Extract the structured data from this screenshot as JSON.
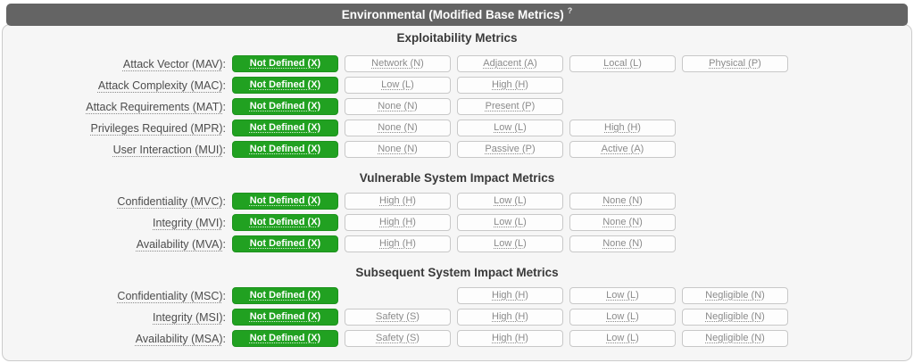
{
  "header": {
    "title": "Environmental (Modified Base Metrics)",
    "help": "?"
  },
  "label_suffix": ":",
  "colors": {
    "selected_green": "#21a121",
    "header_gray": "#646464",
    "panel_bg": "#f6f6f6"
  },
  "sections": [
    {
      "heading": "Exploitability Metrics",
      "rows": [
        {
          "label": "Attack Vector (MAV)",
          "options": [
            {
              "label": "Not Defined (X)",
              "selected": true
            },
            {
              "label": "Network (N)",
              "selected": false
            },
            {
              "label": "Adjacent (A)",
              "selected": false
            },
            {
              "label": "Local (L)",
              "selected": false
            },
            {
              "label": "Physical (P)",
              "selected": false
            }
          ]
        },
        {
          "label": "Attack Complexity (MAC)",
          "options": [
            {
              "label": "Not Defined (X)",
              "selected": true
            },
            {
              "label": "Low (L)",
              "selected": false
            },
            {
              "label": "High (H)",
              "selected": false
            }
          ]
        },
        {
          "label": "Attack Requirements (MAT)",
          "options": [
            {
              "label": "Not Defined (X)",
              "selected": true
            },
            {
              "label": "None (N)",
              "selected": false
            },
            {
              "label": "Present (P)",
              "selected": false
            }
          ]
        },
        {
          "label": "Privileges Required (MPR)",
          "options": [
            {
              "label": "Not Defined (X)",
              "selected": true
            },
            {
              "label": "None (N)",
              "selected": false
            },
            {
              "label": "Low (L)",
              "selected": false
            },
            {
              "label": "High (H)",
              "selected": false
            }
          ]
        },
        {
          "label": "User Interaction (MUI)",
          "options": [
            {
              "label": "Not Defined (X)",
              "selected": true
            },
            {
              "label": "None (N)",
              "selected": false
            },
            {
              "label": "Passive (P)",
              "selected": false
            },
            {
              "label": "Active (A)",
              "selected": false
            }
          ]
        }
      ]
    },
    {
      "heading": "Vulnerable System Impact Metrics",
      "rows": [
        {
          "label": "Confidentiality (MVC)",
          "options": [
            {
              "label": "Not Defined (X)",
              "selected": true
            },
            {
              "label": "High (H)",
              "selected": false
            },
            {
              "label": "Low (L)",
              "selected": false
            },
            {
              "label": "None (N)",
              "selected": false
            }
          ]
        },
        {
          "label": "Integrity (MVI)",
          "options": [
            {
              "label": "Not Defined (X)",
              "selected": true
            },
            {
              "label": "High (H)",
              "selected": false
            },
            {
              "label": "Low (L)",
              "selected": false
            },
            {
              "label": "None (N)",
              "selected": false
            }
          ]
        },
        {
          "label": "Availability (MVA)",
          "options": [
            {
              "label": "Not Defined (X)",
              "selected": true
            },
            {
              "label": "High (H)",
              "selected": false
            },
            {
              "label": "Low (L)",
              "selected": false
            },
            {
              "label": "None (N)",
              "selected": false
            }
          ]
        }
      ]
    },
    {
      "heading": "Subsequent System Impact Metrics",
      "rows": [
        {
          "label": "Confidentiality (MSC)",
          "options": [
            {
              "label": "Not Defined (X)",
              "selected": true
            },
            {
              "label": "High (H)",
              "selected": false
            },
            {
              "label": "Low (L)",
              "selected": false
            },
            {
              "label": "Negligible (N)",
              "selected": false
            }
          ]
        },
        {
          "label": "Integrity (MSI)",
          "options": [
            {
              "label": "Not Defined (X)",
              "selected": true
            },
            {
              "label": "Safety (S)",
              "selected": false
            },
            {
              "label": "High (H)",
              "selected": false
            },
            {
              "label": "Low (L)",
              "selected": false
            },
            {
              "label": "Negligible (N)",
              "selected": false
            }
          ]
        },
        {
          "label": "Availability (MSA)",
          "options": [
            {
              "label": "Not Defined (X)",
              "selected": true
            },
            {
              "label": "Safety (S)",
              "selected": false
            },
            {
              "label": "High (H)",
              "selected": false
            },
            {
              "label": "Low (L)",
              "selected": false
            },
            {
              "label": "Negligible (N)",
              "selected": false
            }
          ]
        }
      ]
    }
  ]
}
